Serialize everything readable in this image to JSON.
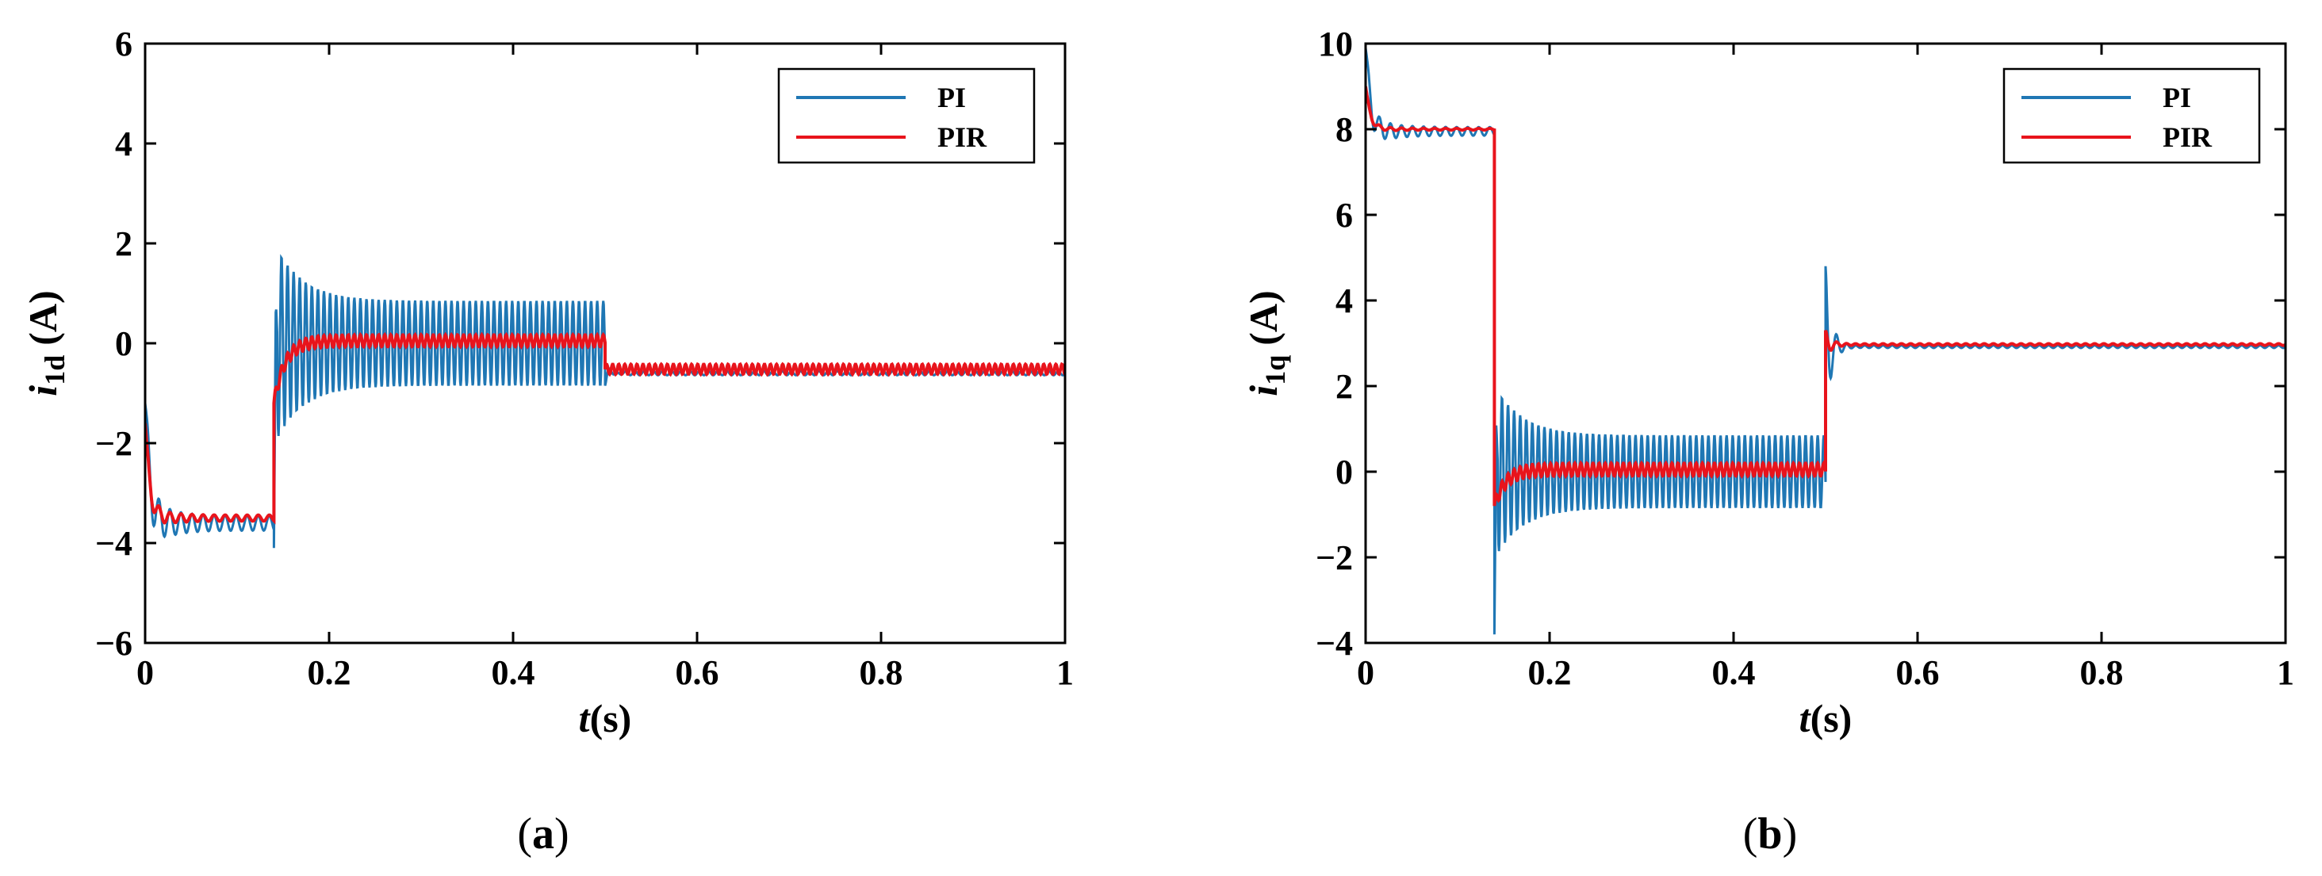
{
  "chart_data": [
    {
      "id": "a",
      "type": "line",
      "caption": {
        "pre": "(",
        "letter": "a",
        "post": ")"
      },
      "ylabel": {
        "var": "i",
        "sub": "1d",
        "unit": "(A)"
      },
      "xlabel": {
        "var": "t",
        "unit": "(s)"
      },
      "xlim": [
        0,
        1
      ],
      "ylim": [
        -6,
        6
      ],
      "xticks": [
        0,
        0.2,
        0.4,
        0.6,
        0.8,
        1
      ],
      "xtick_labels": [
        "0",
        "0.2",
        "0.4",
        "0.6",
        "0.8",
        "1"
      ],
      "yticks": [
        -6,
        -4,
        -2,
        0,
        2,
        4,
        6
      ],
      "ytick_labels": [
        "−6",
        "−4",
        "−2",
        "0",
        "2",
        "4",
        "6"
      ],
      "legend": {
        "position": "top-right",
        "entries": [
          "PI",
          "PIR"
        ]
      },
      "series": [
        {
          "name": "PI",
          "color": "#1f77b4",
          "segments": [
            {
              "t": [
                0,
                0.14
              ],
              "base": -3.6,
              "amp": 0.15,
              "period": 0.012,
              "settle_from": -1.2
            },
            {
              "t": [
                0.14,
                0.5
              ],
              "base": 0.0,
              "amp": 0.85,
              "period": 0.0066,
              "spikes": [
                1.8,
                -4.1
              ]
            },
            {
              "t": [
                0.5,
                1.0
              ],
              "base": -0.6,
              "amp": 0.04,
              "period": 0.01,
              "transient": -0.85
            }
          ]
        },
        {
          "name": "PIR",
          "color": "#e8141c",
          "segments": [
            {
              "t": [
                0,
                0.14
              ],
              "base": -3.5,
              "amp": 0.06,
              "period": 0.012,
              "settle_from": -1.6
            },
            {
              "t": [
                0.14,
                0.5
              ],
              "base": 0.05,
              "amp": 0.12,
              "period": 0.0066,
              "rise_from": -1.2
            },
            {
              "t": [
                0.5,
                1.0
              ],
              "base": -0.52,
              "amp": 0.1,
              "period": 0.0066
            }
          ]
        }
      ]
    },
    {
      "id": "b",
      "type": "line",
      "caption": {
        "pre": "(",
        "letter": "b",
        "post": ")"
      },
      "ylabel": {
        "var": "i",
        "sub": "1q",
        "unit": "(A)"
      },
      "xlabel": {
        "var": "t",
        "unit": "(s)"
      },
      "xlim": [
        0,
        1
      ],
      "ylim": [
        -4,
        10
      ],
      "xticks": [
        0,
        0.2,
        0.4,
        0.6,
        0.8,
        1
      ],
      "xtick_labels": [
        "0",
        "0.2",
        "0.4",
        "0.6",
        "0.8",
        "1"
      ],
      "yticks": [
        -4,
        -2,
        0,
        2,
        4,
        6,
        8,
        10
      ],
      "ytick_labels": [
        "−4",
        "−2",
        "0",
        "2",
        "4",
        "6",
        "8",
        "10"
      ],
      "legend": {
        "position": "top-right",
        "entries": [
          "PI",
          "PIR"
        ]
      },
      "series": [
        {
          "name": "PI",
          "color": "#1f77b4",
          "segments": [
            {
              "t": [
                0,
                0.14
              ],
              "base": 7.95,
              "amp": 0.1,
              "period": 0.012,
              "settle_from": 9.9
            },
            {
              "t": [
                0.14,
                0.5
              ],
              "base": 0.0,
              "amp": 0.85,
              "period": 0.0066,
              "spikes": [
                2.3,
                -3.8
              ]
            },
            {
              "t": [
                0.5,
                1.0
              ],
              "base": 2.92,
              "amp": 0.03,
              "period": 0.01,
              "transient": 4.8
            }
          ]
        },
        {
          "name": "PIR",
          "color": "#e8141c",
          "segments": [
            {
              "t": [
                0,
                0.14
              ],
              "base": 8.0,
              "amp": 0.02,
              "period": 0.012,
              "settle_from": 9.0
            },
            {
              "t": [
                0.14,
                0.5
              ],
              "base": 0.05,
              "amp": 0.15,
              "period": 0.0066,
              "rise_from": -0.8
            },
            {
              "t": [
                0.5,
                1.0
              ],
              "base": 2.97,
              "amp": 0.02,
              "period": 0.01,
              "transient": 3.3
            }
          ]
        }
      ]
    }
  ]
}
